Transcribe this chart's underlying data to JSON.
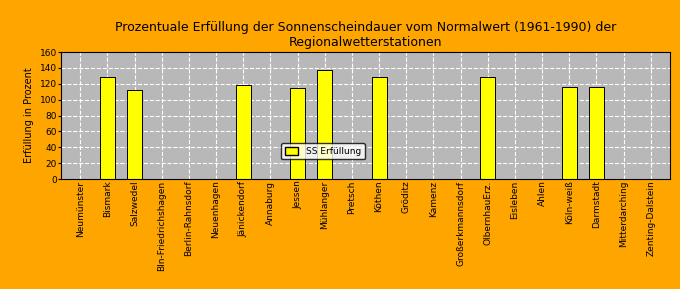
{
  "title": "Prozentuale Erfüllung der Sonnenscheindauer vom Normalwert (1961-1990) der\nRegionalwetterstationen",
  "ylabel": "Erfüllung in Prozent",
  "legend_label": "SS Erfüllung",
  "categories": [
    "Neumünster",
    "Bismark",
    "Salzwedel",
    "Bln-Friedrichshagen",
    "Berlin-Rahnsdorf",
    "Neuenhagen",
    "Jänickendorf",
    "Annaburg",
    "Jessen",
    "Mühlanger",
    "Pretsch",
    "Köthen",
    "Gröditz",
    "Kamenz",
    "Großerkmannsdorf",
    "OlbernhauErz.",
    "Eisleben",
    "Ahlen",
    "Köln-weiß",
    "Darmstadt",
    "Mitterdarching",
    "Zenting-Dalstein"
  ],
  "values": [
    0,
    128,
    112,
    0,
    0,
    0,
    118,
    0,
    115,
    137,
    0,
    128,
    0,
    0,
    0,
    128,
    0,
    0,
    116,
    116,
    0,
    0
  ],
  "bar_color": "#ffff00",
  "bar_edge_color": "#000000",
  "background_color": "#ffa500",
  "plot_bg_color": "#b8b8b8",
  "ylim": [
    0,
    160
  ],
  "yticks": [
    0,
    20,
    40,
    60,
    80,
    100,
    120,
    140,
    160
  ],
  "title_fontsize": 9,
  "axis_label_fontsize": 7,
  "tick_fontsize": 6.5
}
